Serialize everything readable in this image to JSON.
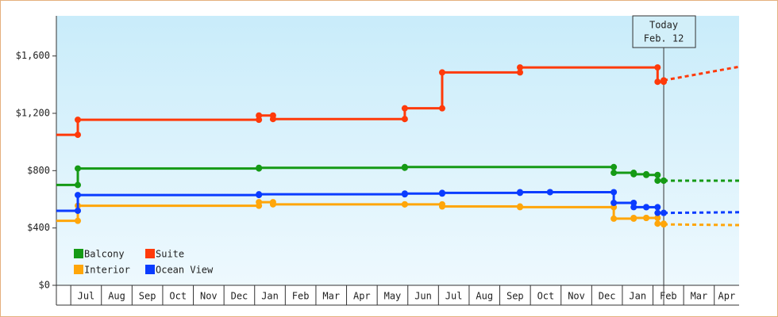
{
  "chart_data": {
    "type": "line",
    "step": true,
    "categories": [
      null,
      "Jul",
      "Aug",
      "Sep",
      "Oct",
      "Nov",
      "Dec",
      "Jan",
      "Feb",
      "Mar",
      "Apr",
      "May",
      "Jun",
      "Jul",
      "Aug",
      "Sep",
      "Oct",
      "Nov",
      "Dec",
      "Jan",
      "Feb",
      "Mar",
      "Apr"
    ],
    "xlim": [
      0.53,
      22.81
    ],
    "ylim": [
      0,
      1880
    ],
    "yticks": [
      {
        "value": 0,
        "label": "$0"
      },
      {
        "value": 400,
        "label": "$400"
      },
      {
        "value": 800,
        "label": "$800"
      },
      {
        "value": 1200,
        "label": "$1,200"
      },
      {
        "value": 1600,
        "label": "$1,600"
      }
    ],
    "series": [
      {
        "name": "Balcony",
        "color": "#159a15",
        "x": [
          0.53,
          1.23,
          7.14,
          11.9,
          18.72,
          19.37,
          19.78,
          20.15,
          20.35
        ],
        "values": [
          700,
          815,
          820,
          825,
          785,
          775,
          770,
          730,
          730
        ],
        "forecast": {
          "x": [
            20.35,
            22.81
          ],
          "values": [
            730,
            730
          ]
        }
      },
      {
        "name": "Suite",
        "color": "#ff3a0a",
        "x": [
          0.53,
          1.23,
          7.14,
          7.6,
          11.9,
          13.12,
          15.66,
          20.15,
          20.35
        ],
        "values": [
          1050,
          1155,
          1185,
          1160,
          1235,
          1485,
          1520,
          1420,
          1430
        ],
        "forecast": {
          "x": [
            20.35,
            22.81
          ],
          "values": [
            1430,
            1525
          ]
        }
      },
      {
        "name": "Interior",
        "color": "#ffa60a",
        "x": [
          0.53,
          1.23,
          7.14,
          7.6,
          11.9,
          13.12,
          15.66,
          18.72,
          19.37,
          19.78,
          20.15,
          20.35
        ],
        "values": [
          450,
          555,
          580,
          565,
          565,
          550,
          545,
          465,
          470,
          470,
          430,
          425
        ],
        "forecast": {
          "x": [
            20.35,
            22.81
          ],
          "values": [
            425,
            420
          ]
        }
      },
      {
        "name": "Ocean View",
        "color": "#0a3cff",
        "x": [
          0.53,
          1.23,
          7.14,
          11.9,
          13.12,
          15.66,
          16.64,
          18.72,
          19.37,
          19.78,
          20.15,
          20.35
        ],
        "values": [
          520,
          630,
          635,
          640,
          645,
          650,
          650,
          575,
          545,
          545,
          505,
          505
        ],
        "forecast": {
          "x": [
            20.35,
            22.81
          ],
          "values": [
            505,
            510
          ]
        }
      }
    ],
    "annotations": [
      {
        "x": 20.35,
        "lines": [
          "Today",
          "Feb. 12"
        ]
      }
    ]
  }
}
